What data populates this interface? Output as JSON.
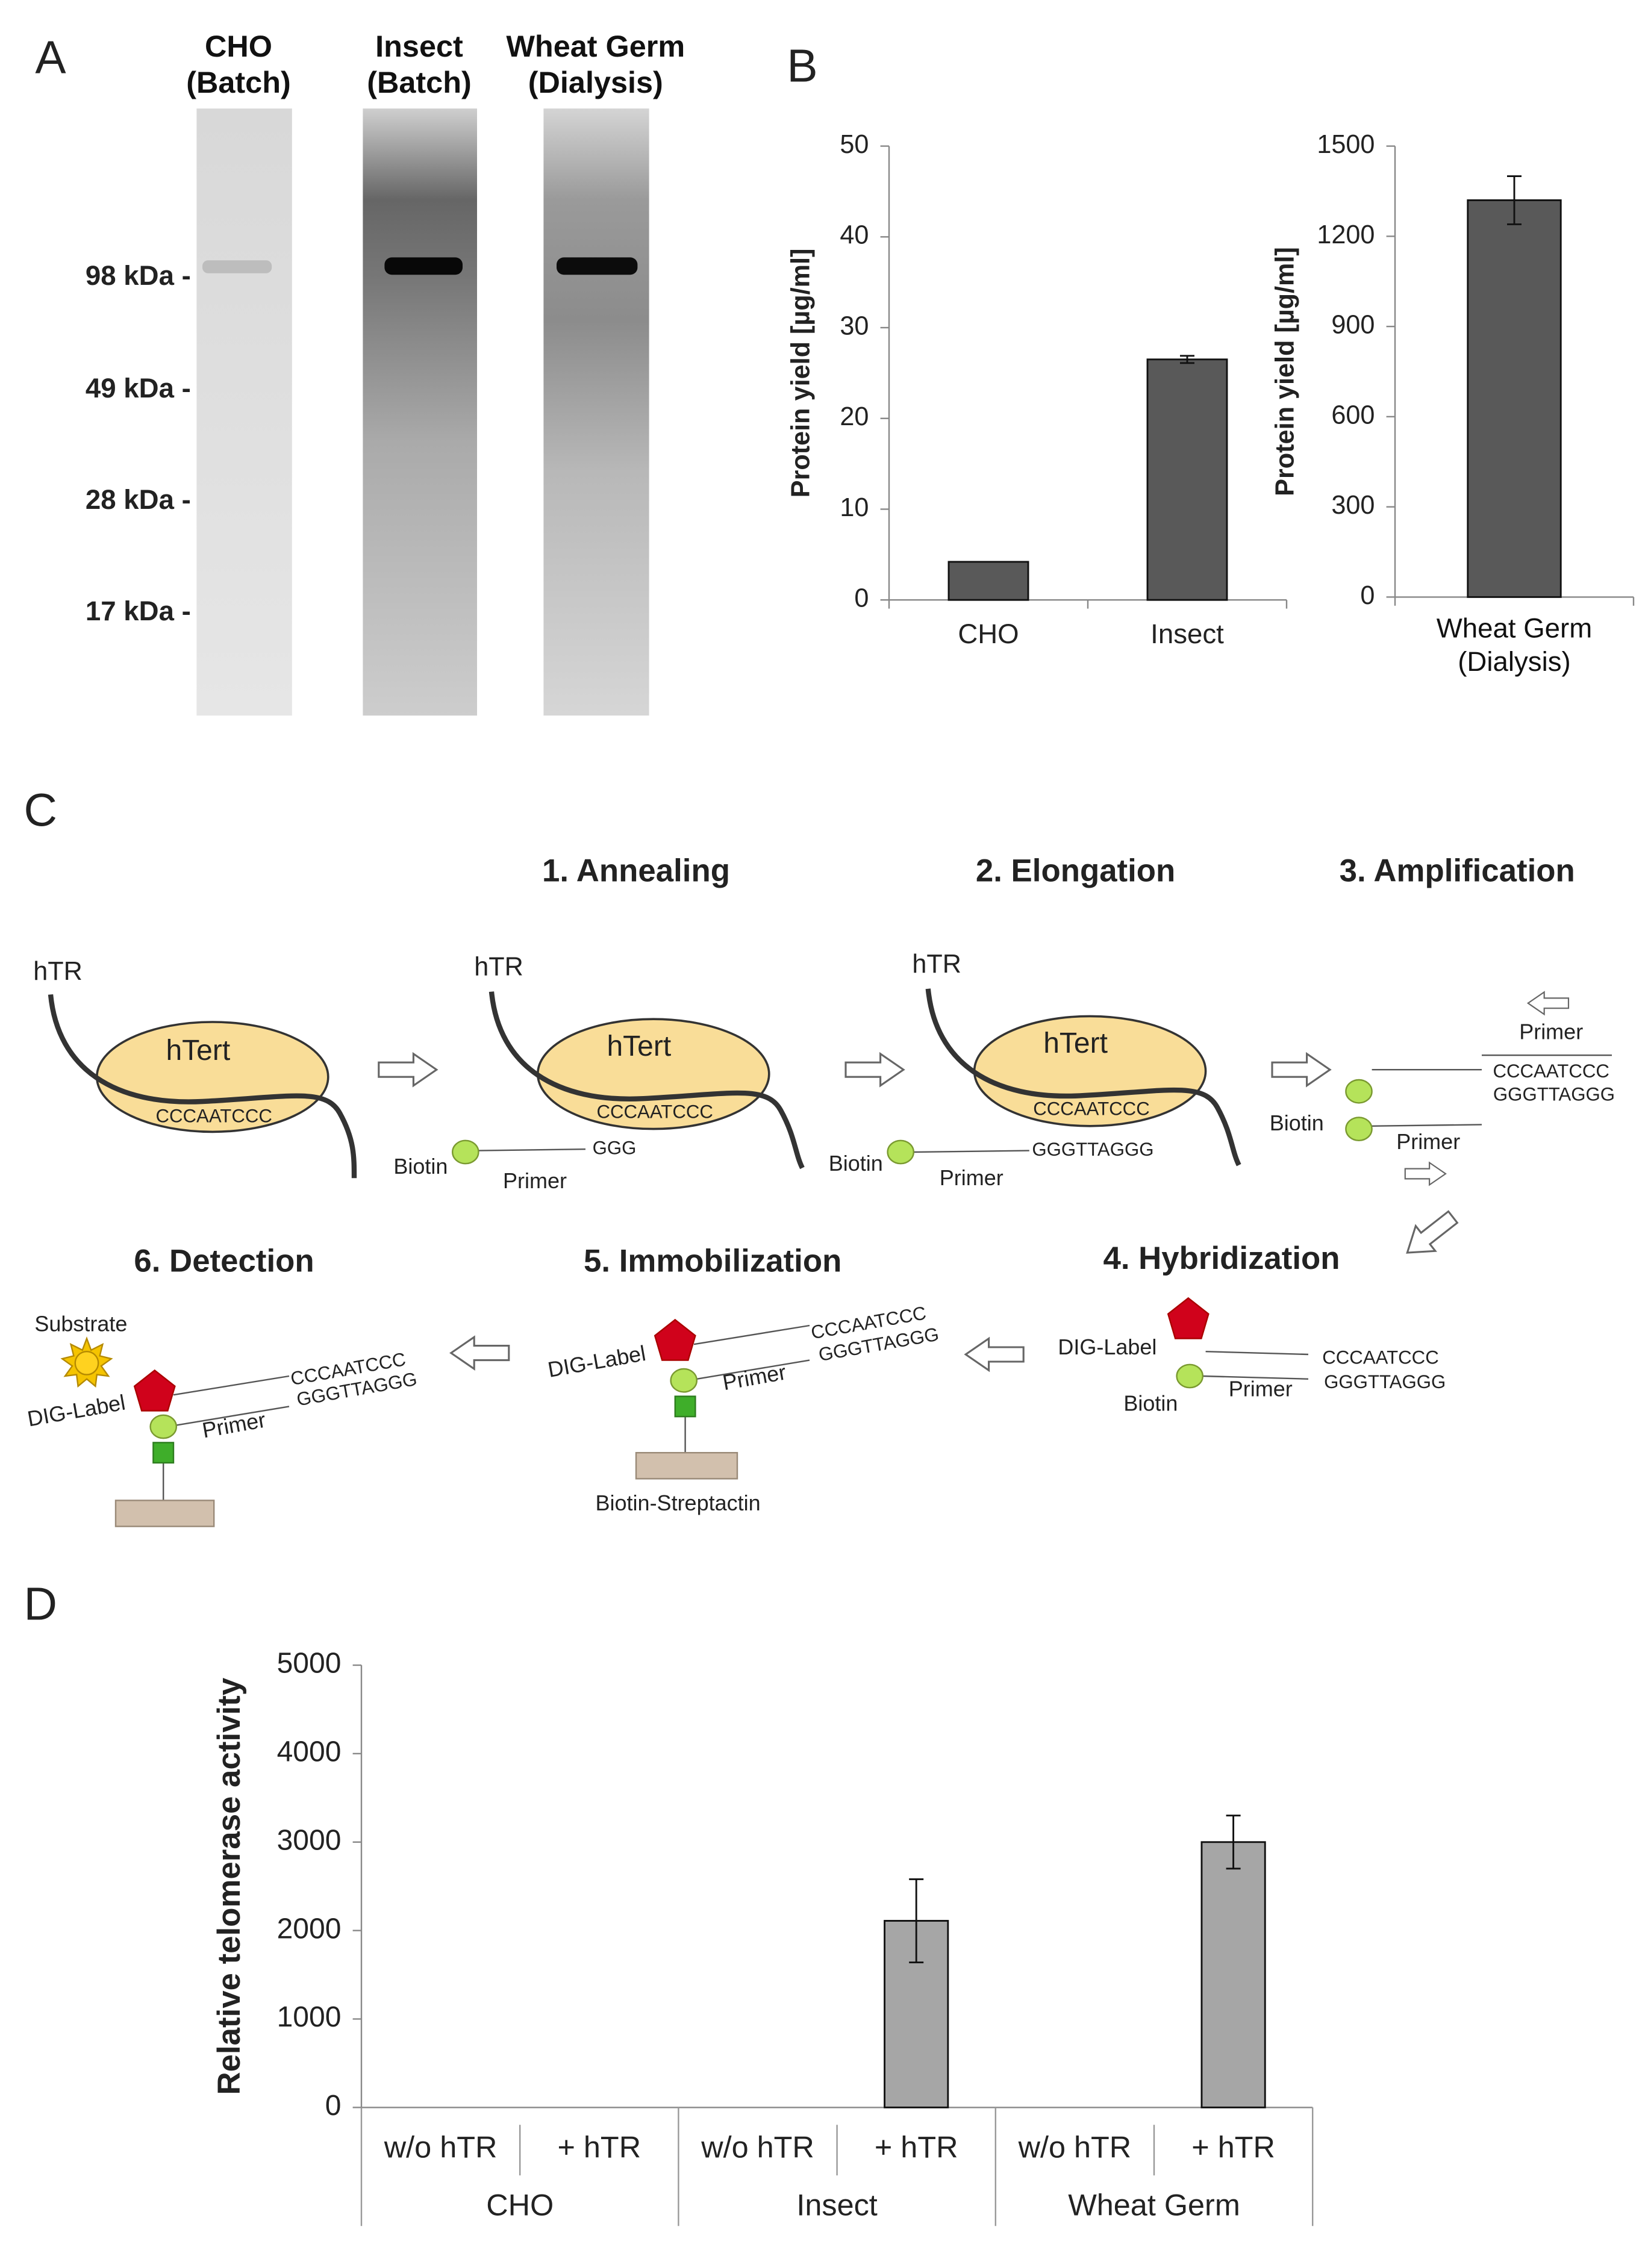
{
  "panel_labels": [
    "A",
    "B",
    "C",
    "D"
  ],
  "gel": {
    "lanes": [
      "CHO\n(Batch)",
      "Insect\n(Batch)",
      "Wheat Germ\n(Dialysis)"
    ],
    "markers": [
      "98 kDa -",
      "49 kDa -",
      "28 kDa -",
      "17 kDa -"
    ]
  },
  "chart_data": [
    {
      "type": "bar",
      "categories": [
        "CHO",
        "Insect"
      ],
      "values": [
        4.2,
        26.5
      ],
      "errors": [
        null,
        0.4
      ],
      "color": "#595959",
      "y_label": "Protein yield [µg/ml]",
      "ylim": [
        0,
        50
      ],
      "yticks": [
        0,
        10,
        20,
        30,
        40,
        50
      ]
    },
    {
      "type": "bar",
      "categories": [
        "Wheat Germ\n(Dialysis)"
      ],
      "values": [
        1320
      ],
      "errors": [
        80
      ],
      "color": "#595959",
      "y_label": "Protein yield [µg/ml]",
      "ylim": [
        0,
        1500
      ],
      "yticks": [
        0,
        300,
        600,
        900,
        1200,
        1500
      ]
    },
    {
      "type": "bar",
      "categories": [
        "w/o hTR",
        "+ hTR",
        "w/o hTR",
        "+ hTR",
        "w/o hTR",
        "+ hTR"
      ],
      "groups": [
        "CHO",
        "Insect",
        "Wheat Germ"
      ],
      "values": [
        0,
        0,
        0,
        2110,
        0,
        3000
      ],
      "errors": [
        null,
        null,
        null,
        470,
        null,
        300
      ],
      "color": "#a6a6a6",
      "y_label": "Relative telomerase activity",
      "ylim": [
        0,
        5000
      ],
      "yticks": [
        0,
        1000,
        2000,
        3000,
        4000,
        5000
      ]
    }
  ],
  "diagram": {
    "steps": [
      "1. Annealing",
      "2. Elongation",
      "3. Amplification",
      "4. Hybridization",
      "5. Immobilization",
      "6. Detection"
    ],
    "labels": [
      "hTR",
      "hTert",
      "CCCAATCCC",
      "hTR",
      "hTert",
      "CCCAATCCC",
      "Biotin",
      "GGG",
      "Primer",
      "hTR",
      "hTert",
      "CCCAATCCC",
      "Biotin",
      "GGGTTAGGG",
      "Primer",
      "Primer",
      "CCCAATCCC",
      "GGGTTAGGG",
      "Biotin",
      "Primer",
      "DIG-Label",
      "CCCAATCCC",
      "GGGTTAGGG",
      "Biotin",
      "Primer",
      "DIG-Label",
      "CCCAATCCC",
      "GGGTTAGGG",
      "Primer",
      "Biotin-Streptactin",
      "Substrate",
      "DIG-Label",
      "CCCAATCCC",
      "GGGTTAGGG",
      "Primer"
    ]
  }
}
